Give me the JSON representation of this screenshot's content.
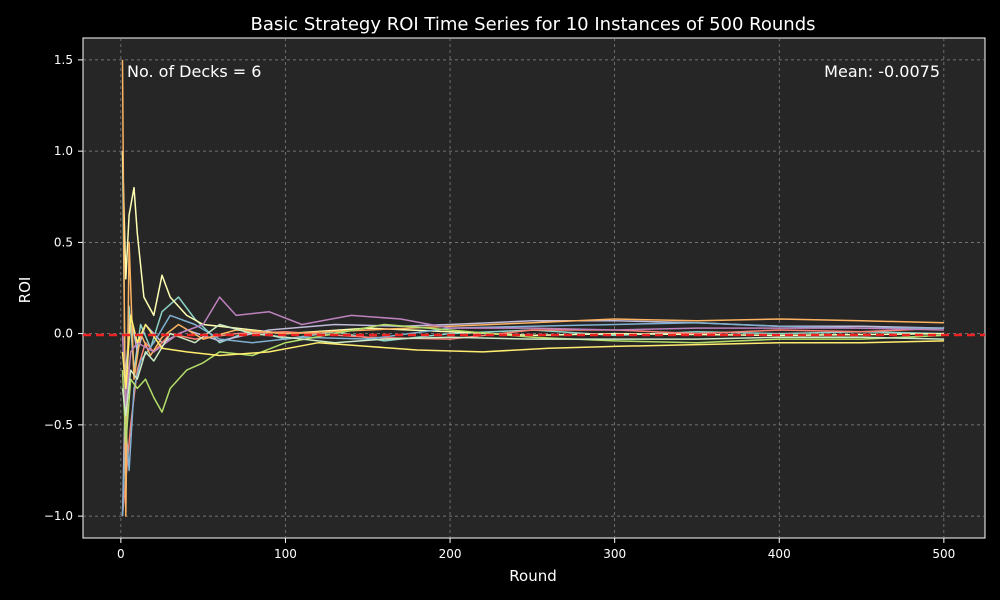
{
  "chart_data": {
    "type": "line",
    "title": "Basic Strategy ROI Time Series for 10 Instances of 500 Rounds",
    "xlabel": "Round",
    "ylabel": "ROI",
    "xlim": [
      -23,
      525
    ],
    "ylim": [
      -1.12,
      1.62
    ],
    "xticks": [
      0,
      100,
      200,
      300,
      400,
      500
    ],
    "yticks": [
      -1.0,
      -0.5,
      0.0,
      0.5,
      1.0,
      1.5
    ],
    "xtick_labels": [
      "0",
      "100",
      "200",
      "300",
      "400",
      "500"
    ],
    "ytick_labels": [
      "−1.0",
      "−0.5",
      "0.0",
      "0.5",
      "1.0",
      "1.5"
    ],
    "grid": true,
    "background": "#262626",
    "figure_background": "#000000",
    "annotations": [
      {
        "text": "No. of Decks = 6",
        "position": "top-left"
      },
      {
        "text": "Mean: -0.0075",
        "position": "top-right"
      }
    ],
    "mean_line": {
      "value": -0.0075,
      "color": "#ee2222",
      "style": "dashed"
    },
    "series": [
      {
        "color": "#8dd3c7",
        "values": [
          [
            1,
            1.0
          ],
          [
            3,
            -0.6
          ],
          [
            5,
            0.15
          ],
          [
            8,
            -0.2
          ],
          [
            12,
            0.05
          ],
          [
            18,
            -0.08
          ],
          [
            25,
            0.12
          ],
          [
            35,
            0.2
          ],
          [
            45,
            0.08
          ],
          [
            60,
            -0.05
          ],
          [
            80,
            0.02
          ],
          [
            100,
            -0.03
          ],
          [
            130,
            0.01
          ],
          [
            160,
            -0.04
          ],
          [
            200,
            0.0
          ],
          [
            250,
            0.02
          ],
          [
            300,
            -0.01
          ],
          [
            350,
            0.01
          ],
          [
            400,
            0.0
          ],
          [
            450,
            0.01
          ],
          [
            500,
            0.0
          ]
        ]
      },
      {
        "color": "#feffb3",
        "values": [
          [
            1,
            1.0
          ],
          [
            3,
            0.3
          ],
          [
            5,
            0.65
          ],
          [
            8,
            0.8
          ],
          [
            10,
            0.55
          ],
          [
            14,
            0.2
          ],
          [
            20,
            0.1
          ],
          [
            25,
            0.32
          ],
          [
            30,
            0.2
          ],
          [
            40,
            0.1
          ],
          [
            50,
            0.05
          ],
          [
            70,
            0.03
          ],
          [
            100,
            0.0
          ],
          [
            150,
            0.03
          ],
          [
            200,
            0.01
          ],
          [
            250,
            -0.01
          ],
          [
            300,
            0.0
          ],
          [
            400,
            -0.01
          ],
          [
            500,
            0.0
          ]
        ]
      },
      {
        "color": "#bfbbd9",
        "values": [
          [
            1,
            -1.0
          ],
          [
            3,
            -0.2
          ],
          [
            6,
            0.1
          ],
          [
            10,
            -0.1
          ],
          [
            15,
            0.05
          ],
          [
            25,
            -0.05
          ],
          [
            40,
            0.02
          ],
          [
            60,
            -0.04
          ],
          [
            90,
            0.02
          ],
          [
            130,
            0.05
          ],
          [
            170,
            0.04
          ],
          [
            200,
            0.05
          ],
          [
            250,
            0.07
          ],
          [
            300,
            0.07
          ],
          [
            350,
            0.06
          ],
          [
            400,
            0.04
          ],
          [
            450,
            0.04
          ],
          [
            500,
            0.03
          ]
        ]
      },
      {
        "color": "#fa8174",
        "values": [
          [
            1,
            -1.0
          ],
          [
            3,
            -0.8
          ],
          [
            6,
            -0.5
          ],
          [
            10,
            -0.2
          ],
          [
            15,
            -0.05
          ],
          [
            20,
            -0.1
          ],
          [
            30,
            0.0
          ],
          [
            45,
            -0.03
          ],
          [
            70,
            0.0
          ],
          [
            100,
            0.01
          ],
          [
            150,
            -0.02
          ],
          [
            200,
            -0.03
          ],
          [
            250,
            0.02
          ],
          [
            300,
            0.02
          ],
          [
            350,
            0.0
          ],
          [
            400,
            0.02
          ],
          [
            450,
            0.01
          ],
          [
            500,
            0.03
          ]
        ]
      },
      {
        "color": "#81b1d2",
        "values": [
          [
            1,
            -1.0
          ],
          [
            3,
            -0.5
          ],
          [
            5,
            -0.75
          ],
          [
            8,
            -0.3
          ],
          [
            12,
            -0.15
          ],
          [
            20,
            -0.05
          ],
          [
            30,
            0.1
          ],
          [
            45,
            0.05
          ],
          [
            60,
            -0.03
          ],
          [
            80,
            -0.05
          ],
          [
            110,
            -0.02
          ],
          [
            150,
            -0.03
          ],
          [
            200,
            0.03
          ],
          [
            250,
            0.04
          ],
          [
            300,
            0.05
          ],
          [
            350,
            0.06
          ],
          [
            400,
            0.04
          ],
          [
            450,
            0.03
          ],
          [
            500,
            0.03
          ]
        ]
      },
      {
        "color": "#fdb462",
        "values": [
          [
            1,
            1.5
          ],
          [
            3,
            -1.0
          ],
          [
            5,
            0.5
          ],
          [
            8,
            -0.25
          ],
          [
            12,
            0.0
          ],
          [
            18,
            -0.12
          ],
          [
            25,
            -0.02
          ],
          [
            35,
            0.05
          ],
          [
            50,
            -0.03
          ],
          [
            70,
            0.02
          ],
          [
            100,
            0.0
          ],
          [
            150,
            0.02
          ],
          [
            200,
            0.04
          ],
          [
            250,
            0.06
          ],
          [
            300,
            0.08
          ],
          [
            350,
            0.07
          ],
          [
            400,
            0.08
          ],
          [
            450,
            0.07
          ],
          [
            500,
            0.06
          ]
        ]
      },
      {
        "color": "#b3de69",
        "values": [
          [
            1,
            -0.2
          ],
          [
            3,
            -0.6
          ],
          [
            6,
            -0.25
          ],
          [
            10,
            -0.3
          ],
          [
            15,
            -0.25
          ],
          [
            20,
            -0.35
          ],
          [
            25,
            -0.43
          ],
          [
            30,
            -0.3
          ],
          [
            40,
            -0.2
          ],
          [
            50,
            -0.16
          ],
          [
            60,
            -0.1
          ],
          [
            80,
            -0.12
          ],
          [
            100,
            -0.05
          ],
          [
            130,
            0.0
          ],
          [
            160,
            0.05
          ],
          [
            200,
            0.02
          ],
          [
            250,
            -0.02
          ],
          [
            300,
            -0.04
          ],
          [
            350,
            -0.05
          ],
          [
            400,
            -0.03
          ],
          [
            450,
            -0.03
          ],
          [
            500,
            -0.01
          ]
        ]
      },
      {
        "color": "#bc82bd",
        "values": [
          [
            1,
            0.0
          ],
          [
            3,
            -0.4
          ],
          [
            6,
            -0.1
          ],
          [
            10,
            -0.05
          ],
          [
            20,
            -0.1
          ],
          [
            35,
            0.0
          ],
          [
            50,
            0.05
          ],
          [
            60,
            0.2
          ],
          [
            70,
            0.1
          ],
          [
            90,
            0.12
          ],
          [
            110,
            0.05
          ],
          [
            140,
            0.1
          ],
          [
            170,
            0.08
          ],
          [
            200,
            0.03
          ],
          [
            250,
            0.03
          ],
          [
            300,
            0.02
          ],
          [
            350,
            0.03
          ],
          [
            400,
            0.03
          ],
          [
            450,
            0.03
          ],
          [
            500,
            0.02
          ]
        ]
      },
      {
        "color": "#ccebc4",
        "values": [
          [
            1,
            -0.3
          ],
          [
            3,
            -0.45
          ],
          [
            6,
            -0.2
          ],
          [
            10,
            -0.25
          ],
          [
            15,
            -0.1
          ],
          [
            20,
            -0.15
          ],
          [
            30,
            0.0
          ],
          [
            45,
            -0.05
          ],
          [
            60,
            0.05
          ],
          [
            80,
            0.0
          ],
          [
            100,
            -0.02
          ],
          [
            130,
            -0.05
          ],
          [
            160,
            -0.03
          ],
          [
            200,
            -0.02
          ],
          [
            250,
            -0.03
          ],
          [
            300,
            -0.03
          ],
          [
            350,
            -0.03
          ],
          [
            400,
            -0.02
          ],
          [
            450,
            -0.02
          ],
          [
            500,
            -0.03
          ]
        ]
      },
      {
        "color": "#ffed6f",
        "values": [
          [
            1,
            -0.1
          ],
          [
            3,
            -0.3
          ],
          [
            6,
            0.1
          ],
          [
            10,
            -0.05
          ],
          [
            15,
            0.05
          ],
          [
            25,
            -0.08
          ],
          [
            40,
            -0.1
          ],
          [
            60,
            -0.12
          ],
          [
            90,
            -0.1
          ],
          [
            120,
            -0.05
          ],
          [
            150,
            -0.07
          ],
          [
            180,
            -0.09
          ],
          [
            220,
            -0.1
          ],
          [
            260,
            -0.08
          ],
          [
            300,
            -0.07
          ],
          [
            350,
            -0.06
          ],
          [
            400,
            -0.05
          ],
          [
            450,
            -0.05
          ],
          [
            500,
            -0.04
          ]
        ]
      }
    ]
  }
}
